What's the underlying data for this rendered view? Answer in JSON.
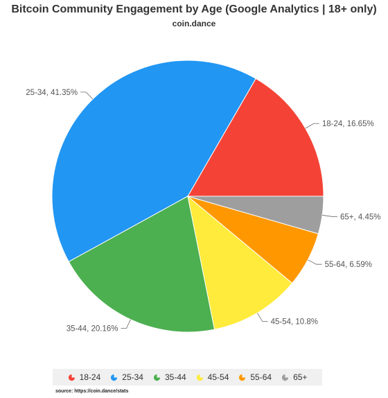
{
  "chart_data": {
    "type": "pie",
    "title": "Bitcoin Community Engagement by Age (Google Analytics | 18+ only)",
    "subtitle": "coin.dance",
    "slices": [
      {
        "label": "18-24",
        "value": 16.65,
        "data_label": "18-24, 16.65%",
        "color": "#f44336"
      },
      {
        "label": "25-34",
        "value": 41.35,
        "data_label": "25-34, 41.35%",
        "color": "#2196f3"
      },
      {
        "label": "35-44",
        "value": 20.16,
        "data_label": "35-44, 20.16%",
        "color": "#4caf50"
      },
      {
        "label": "45-54",
        "value": 10.8,
        "data_label": "45-54, 10.8%",
        "color": "#ffeb3b"
      },
      {
        "label": "55-64",
        "value": 6.59,
        "data_label": "55-64, 6.59%",
        "color": "#ff9800"
      },
      {
        "label": "65+",
        "value": 4.45,
        "data_label": "65+, 4.45%",
        "color": "#9e9e9e"
      }
    ],
    "legend": {
      "placement": "bottom",
      "items": [
        "18-24",
        "25-34",
        "35-44",
        "45-54",
        "55-64",
        "65+"
      ]
    },
    "source": "source: https://coin.dance/stats"
  }
}
